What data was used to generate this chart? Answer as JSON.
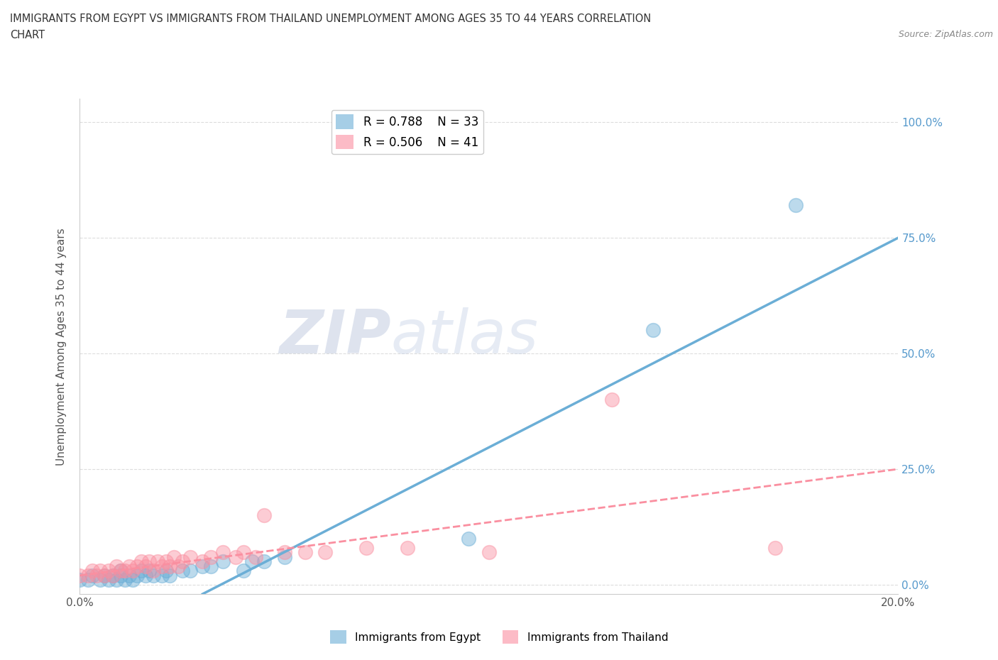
{
  "title_line1": "IMMIGRANTS FROM EGYPT VS IMMIGRANTS FROM THAILAND UNEMPLOYMENT AMONG AGES 35 TO 44 YEARS CORRELATION",
  "title_line2": "CHART",
  "source": "Source: ZipAtlas.com",
  "ylabel": "Unemployment Among Ages 35 to 44 years",
  "xmin": 0.0,
  "xmax": 0.2,
  "ymin": -0.02,
  "ymax": 1.05,
  "yticks": [
    0.0,
    0.25,
    0.5,
    0.75,
    1.0
  ],
  "ytick_labels": [
    "0.0%",
    "25.0%",
    "50.0%",
    "75.0%",
    "100.0%"
  ],
  "xticks": [
    0.0,
    0.05,
    0.1,
    0.15,
    0.2
  ],
  "xtick_labels": [
    "0.0%",
    "",
    "",
    "",
    "20.0%"
  ],
  "egypt_color": "#6baed6",
  "thailand_color": "#fa8fa0",
  "egypt_R": 0.788,
  "egypt_N": 33,
  "thailand_R": 0.506,
  "thailand_N": 41,
  "egypt_line_x0": 0.03,
  "egypt_line_y0": -0.02,
  "egypt_line_x1": 0.2,
  "egypt_line_y1": 0.75,
  "thailand_line_x0": 0.0,
  "thailand_line_y0": 0.02,
  "thailand_line_x1": 0.2,
  "thailand_line_y1": 0.25,
  "egypt_scatter_x": [
    0.0,
    0.002,
    0.003,
    0.005,
    0.006,
    0.007,
    0.008,
    0.009,
    0.01,
    0.01,
    0.011,
    0.012,
    0.013,
    0.014,
    0.015,
    0.016,
    0.017,
    0.018,
    0.02,
    0.021,
    0.022,
    0.025,
    0.027,
    0.03,
    0.032,
    0.035,
    0.04,
    0.042,
    0.045,
    0.05,
    0.095,
    0.14,
    0.175
  ],
  "egypt_scatter_y": [
    0.01,
    0.01,
    0.02,
    0.01,
    0.02,
    0.01,
    0.02,
    0.01,
    0.02,
    0.03,
    0.01,
    0.02,
    0.01,
    0.02,
    0.03,
    0.02,
    0.03,
    0.02,
    0.02,
    0.03,
    0.02,
    0.03,
    0.03,
    0.04,
    0.04,
    0.05,
    0.03,
    0.05,
    0.05,
    0.06,
    0.1,
    0.55,
    0.82
  ],
  "thailand_scatter_x": [
    0.0,
    0.002,
    0.003,
    0.004,
    0.005,
    0.006,
    0.007,
    0.008,
    0.009,
    0.01,
    0.011,
    0.012,
    0.013,
    0.014,
    0.015,
    0.016,
    0.017,
    0.018,
    0.019,
    0.02,
    0.021,
    0.022,
    0.023,
    0.024,
    0.025,
    0.027,
    0.03,
    0.032,
    0.035,
    0.038,
    0.04,
    0.043,
    0.045,
    0.05,
    0.055,
    0.06,
    0.07,
    0.08,
    0.1,
    0.13,
    0.17
  ],
  "thailand_scatter_y": [
    0.02,
    0.02,
    0.03,
    0.02,
    0.03,
    0.02,
    0.03,
    0.02,
    0.04,
    0.03,
    0.03,
    0.04,
    0.03,
    0.04,
    0.05,
    0.04,
    0.05,
    0.03,
    0.05,
    0.04,
    0.05,
    0.04,
    0.06,
    0.04,
    0.05,
    0.06,
    0.05,
    0.06,
    0.07,
    0.06,
    0.07,
    0.06,
    0.15,
    0.07,
    0.07,
    0.07,
    0.08,
    0.08,
    0.07,
    0.4,
    0.08
  ],
  "watermark_zip": "ZIP",
  "watermark_atlas": "atlas",
  "background_color": "#ffffff",
  "grid_color": "#dddddd",
  "grid_linestyle": "--"
}
